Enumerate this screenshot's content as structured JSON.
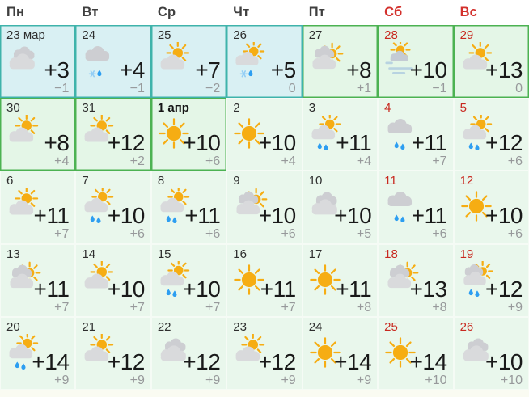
{
  "weekdays": [
    {
      "label": "Пн",
      "weekend": false
    },
    {
      "label": "Вт",
      "weekend": false
    },
    {
      "label": "Ср",
      "weekend": false
    },
    {
      "label": "Чт",
      "weekend": false
    },
    {
      "label": "Пт",
      "weekend": false
    },
    {
      "label": "Сб",
      "weekend": true
    },
    {
      "label": "Вс",
      "weekend": true
    }
  ],
  "days": [
    {
      "date": "23 мар",
      "icon": "clouds",
      "tmax": "+3",
      "tmin": "−1",
      "weekend": false,
      "bold": false,
      "highlight": "cyan"
    },
    {
      "date": "24",
      "icon": "cloud-sleet",
      "tmax": "+4",
      "tmin": "−1",
      "weekend": false,
      "bold": false,
      "highlight": "cyan"
    },
    {
      "date": "25",
      "icon": "sun-cloud",
      "tmax": "+7",
      "tmin": "−2",
      "weekend": false,
      "bold": false,
      "highlight": "cyan"
    },
    {
      "date": "26",
      "icon": "sun-cloud-sleet",
      "tmax": "+5",
      "tmin": "0",
      "weekend": false,
      "bold": false,
      "highlight": "cyan"
    },
    {
      "date": "27",
      "icon": "sun-clouds",
      "tmax": "+8",
      "tmin": "+1",
      "weekend": false,
      "bold": false,
      "highlight": "green"
    },
    {
      "date": "28",
      "icon": "fog-sun",
      "tmax": "+10",
      "tmin": "−1",
      "weekend": true,
      "bold": false,
      "highlight": "green"
    },
    {
      "date": "29",
      "icon": "sun-cloud",
      "tmax": "+13",
      "tmin": "0",
      "weekend": true,
      "bold": false,
      "highlight": "green"
    },
    {
      "date": "30",
      "icon": "sun-cloud",
      "tmax": "+8",
      "tmin": "+4",
      "weekend": false,
      "bold": false,
      "highlight": "green"
    },
    {
      "date": "31",
      "icon": "sun-cloud",
      "tmax": "+12",
      "tmin": "+2",
      "weekend": false,
      "bold": false,
      "highlight": "green"
    },
    {
      "date": "1 апр",
      "icon": "sunny",
      "tmax": "+10",
      "tmin": "+6",
      "weekend": false,
      "bold": true,
      "highlight": "green"
    },
    {
      "date": "2",
      "icon": "sunny",
      "tmax": "+10",
      "tmin": "+4",
      "weekend": false,
      "bold": false,
      "highlight": "none"
    },
    {
      "date": "3",
      "icon": "sun-cloud-rain",
      "tmax": "+11",
      "tmin": "+4",
      "weekend": false,
      "bold": false,
      "highlight": "none"
    },
    {
      "date": "4",
      "icon": "cloud-rain",
      "tmax": "+11",
      "tmin": "+7",
      "weekend": true,
      "bold": false,
      "highlight": "none"
    },
    {
      "date": "5",
      "icon": "sun-cloud-rain",
      "tmax": "+12",
      "tmin": "+6",
      "weekend": true,
      "bold": false,
      "highlight": "none"
    },
    {
      "date": "6",
      "icon": "sun-cloud",
      "tmax": "+11",
      "tmin": "+7",
      "weekend": false,
      "bold": false,
      "highlight": "none"
    },
    {
      "date": "7",
      "icon": "sun-cloud-rain",
      "tmax": "+10",
      "tmin": "+6",
      "weekend": false,
      "bold": false,
      "highlight": "none"
    },
    {
      "date": "8",
      "icon": "sun-cloud-rain",
      "tmax": "+11",
      "tmin": "+6",
      "weekend": false,
      "bold": false,
      "highlight": "none"
    },
    {
      "date": "9",
      "icon": "sun-clouds",
      "tmax": "+10",
      "tmin": "+6",
      "weekend": false,
      "bold": false,
      "highlight": "none"
    },
    {
      "date": "10",
      "icon": "clouds",
      "tmax": "+10",
      "tmin": "+5",
      "weekend": false,
      "bold": false,
      "highlight": "none"
    },
    {
      "date": "11",
      "icon": "cloud-rain",
      "tmax": "+11",
      "tmin": "+6",
      "weekend": true,
      "bold": false,
      "highlight": "none"
    },
    {
      "date": "12",
      "icon": "sunny",
      "tmax": "+10",
      "tmin": "+6",
      "weekend": true,
      "bold": false,
      "highlight": "none"
    },
    {
      "date": "13",
      "icon": "sun-clouds",
      "tmax": "+11",
      "tmin": "+7",
      "weekend": false,
      "bold": false,
      "highlight": "none"
    },
    {
      "date": "14",
      "icon": "sun-cloud",
      "tmax": "+10",
      "tmin": "+7",
      "weekend": false,
      "bold": false,
      "highlight": "none"
    },
    {
      "date": "15",
      "icon": "sun-cloud-rain",
      "tmax": "+10",
      "tmin": "+7",
      "weekend": false,
      "bold": false,
      "highlight": "none"
    },
    {
      "date": "16",
      "icon": "sunny",
      "tmax": "+11",
      "tmin": "+7",
      "weekend": false,
      "bold": false,
      "highlight": "none"
    },
    {
      "date": "17",
      "icon": "sunny",
      "tmax": "+11",
      "tmin": "+8",
      "weekend": false,
      "bold": false,
      "highlight": "none"
    },
    {
      "date": "18",
      "icon": "sun-clouds",
      "tmax": "+13",
      "tmin": "+8",
      "weekend": true,
      "bold": false,
      "highlight": "none"
    },
    {
      "date": "19",
      "icon": "sun-clouds-rain",
      "tmax": "+12",
      "tmin": "+9",
      "weekend": true,
      "bold": false,
      "highlight": "none"
    },
    {
      "date": "20",
      "icon": "sun-cloud-rain",
      "tmax": "+14",
      "tmin": "+9",
      "weekend": false,
      "bold": false,
      "highlight": "none"
    },
    {
      "date": "21",
      "icon": "sun-cloud",
      "tmax": "+12",
      "tmin": "+9",
      "weekend": false,
      "bold": false,
      "highlight": "none"
    },
    {
      "date": "22",
      "icon": "clouds",
      "tmax": "+12",
      "tmin": "+9",
      "weekend": false,
      "bold": false,
      "highlight": "none"
    },
    {
      "date": "23",
      "icon": "sun-cloud",
      "tmax": "+12",
      "tmin": "+9",
      "weekend": false,
      "bold": false,
      "highlight": "none"
    },
    {
      "date": "24",
      "icon": "sunny",
      "tmax": "+14",
      "tmin": "+9",
      "weekend": false,
      "bold": false,
      "highlight": "none"
    },
    {
      "date": "25",
      "icon": "sunny",
      "tmax": "+14",
      "tmin": "+10",
      "weekend": true,
      "bold": false,
      "highlight": "none"
    },
    {
      "date": "26",
      "icon": "clouds",
      "tmax": "+10",
      "tmin": "+10",
      "weekend": true,
      "bold": false,
      "highlight": "none"
    }
  ],
  "colors": {
    "weekend_red": "#d3302c",
    "date_red": "#c8281f",
    "highlight_cyan_border": "#3fb3ab",
    "highlight_cyan_bg": "#d9f0f3",
    "highlight_green_border": "#4cb252",
    "highlight_green_bg": "#e4f6e7",
    "plain_bg": "#e9f7ec",
    "sun": "#f6ad13",
    "cloud_front": "#d9dadc",
    "cloud_back": "#cdced2",
    "fog_cloud": "#c4cbd4",
    "rain": "#2d9ef1",
    "snow": "#93cef5",
    "fog_line": "#b8d3e1"
  }
}
